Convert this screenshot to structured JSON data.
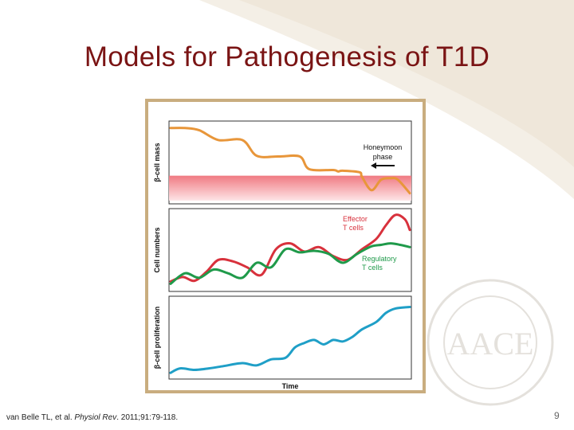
{
  "slide": {
    "title": "Models for Pathogenesis of T1D",
    "citation_prefix": "van Belle TL, et al. ",
    "citation_journal": "Physiol Rev",
    "citation_suffix": ". 2011;91:79-118.",
    "page_number": "9",
    "logo_text": "AACE"
  },
  "colors": {
    "title": "#7a1414",
    "frame": "#c9ad7f",
    "beta_mass": "#e8963a",
    "effector": "#d8313c",
    "regulatory": "#1f9a4a",
    "proliferation": "#1f9fc7",
    "threshold_band": "#f4a3a8"
  },
  "chart_data": [
    {
      "type": "line",
      "panel": "top",
      "ylabel": "β-cell mass",
      "xlabel": "",
      "annotations": [
        "Honeymoon",
        "phase"
      ],
      "threshold_band": true,
      "series": [
        {
          "name": "β-cell mass",
          "color": "#e8963a",
          "x": [
            0,
            0.06,
            0.12,
            0.2,
            0.3,
            0.36,
            0.45,
            0.54,
            0.58,
            0.68,
            0.7,
            0.72,
            0.79,
            0.8,
            0.84,
            0.88,
            0.92,
            0.95,
            1.0
          ],
          "y": [
            0.97,
            0.97,
            0.94,
            0.81,
            0.81,
            0.6,
            0.59,
            0.59,
            0.42,
            0.41,
            0.39,
            0.4,
            0.38,
            0.32,
            0.14,
            0.28,
            0.3,
            0.28,
            0.1
          ]
        }
      ]
    },
    {
      "type": "line",
      "panel": "middle",
      "ylabel": "Cell numbers",
      "xlabel": "",
      "series": [
        {
          "name": "Effector T cells",
          "color": "#d8313c",
          "x": [
            0,
            0.05,
            0.1,
            0.15,
            0.2,
            0.26,
            0.32,
            0.38,
            0.44,
            0.5,
            0.56,
            0.62,
            0.68,
            0.74,
            0.8,
            0.86,
            0.9,
            0.94,
            0.98,
            1.0
          ],
          "y": [
            0.09,
            0.15,
            0.1,
            0.22,
            0.38,
            0.36,
            0.28,
            0.18,
            0.52,
            0.6,
            0.49,
            0.55,
            0.43,
            0.38,
            0.52,
            0.66,
            0.84,
            0.98,
            0.92,
            0.78
          ]
        },
        {
          "name": "Regulatory T cells",
          "color": "#1f9a4a",
          "x": [
            0,
            0.06,
            0.12,
            0.18,
            0.24,
            0.3,
            0.36,
            0.42,
            0.48,
            0.54,
            0.6,
            0.66,
            0.72,
            0.78,
            0.84,
            0.88,
            0.92,
            0.96,
            1.0
          ],
          "y": [
            0.06,
            0.2,
            0.14,
            0.25,
            0.2,
            0.14,
            0.34,
            0.28,
            0.52,
            0.48,
            0.5,
            0.46,
            0.34,
            0.46,
            0.56,
            0.58,
            0.6,
            0.58,
            0.55
          ]
        }
      ]
    },
    {
      "type": "line",
      "panel": "bottom",
      "ylabel": "β-cell proliferation",
      "xlabel": "Time",
      "series": [
        {
          "name": "β-cell proliferation",
          "color": "#1f9fc7",
          "x": [
            0,
            0.04,
            0.1,
            0.16,
            0.22,
            0.3,
            0.36,
            0.42,
            0.48,
            0.52,
            0.56,
            0.6,
            0.64,
            0.68,
            0.72,
            0.76,
            0.8,
            0.86,
            0.9,
            0.94,
            1.0
          ],
          "y": [
            0.04,
            0.1,
            0.08,
            0.1,
            0.13,
            0.17,
            0.14,
            0.22,
            0.24,
            0.38,
            0.44,
            0.48,
            0.42,
            0.48,
            0.46,
            0.52,
            0.62,
            0.72,
            0.84,
            0.9,
            0.92
          ]
        }
      ]
    }
  ]
}
